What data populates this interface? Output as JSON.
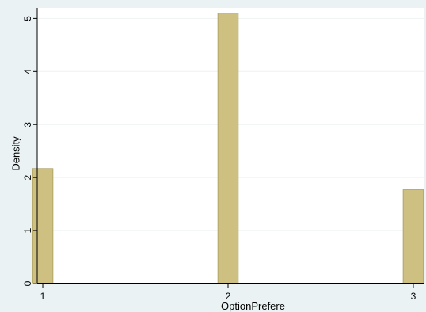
{
  "chart_data": {
    "type": "bar",
    "title": "",
    "xlabel": "OptionPrefere",
    "ylabel": "Density",
    "x": [
      1,
      2,
      3
    ],
    "values": [
      2.17,
      5.1,
      1.77
    ],
    "xlim": [
      0.97,
      3.06
    ],
    "ylim": [
      0,
      5.2
    ],
    "x_ticks": [
      1,
      2,
      3
    ],
    "y_ticks": [
      0,
      1,
      2,
      3,
      4,
      5
    ],
    "bar_width": 0.11,
    "grid": true,
    "legend": "none",
    "colors": {
      "bar_fill": "#cdc081",
      "bar_stroke": "#a89c5c",
      "plot_background": "#ffffff",
      "outer_background": "#eaf2f3",
      "grid": "#eef2f2",
      "axis": "#000000"
    }
  }
}
